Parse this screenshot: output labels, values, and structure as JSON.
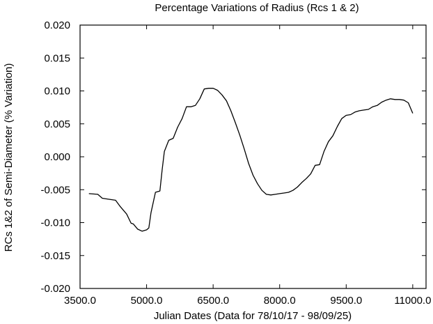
{
  "chart_data": {
    "type": "line",
    "title": "Percentage Variations of Radius (Rcs 1 & 2)",
    "xlabel": "Julian Dates  (Data for 78/10/17 - 98/09/25)",
    "ylabel": "RCs 1&2 of Semi-Diameter (% Variation)",
    "xlim": [
      3500,
      11300
    ],
    "ylim": [
      -0.02,
      0.02
    ],
    "xticks": [
      3500,
      5000,
      6500,
      8000,
      9500,
      11000
    ],
    "xtick_labels": [
      "3500.0",
      "5000.0",
      "6500.0",
      "8000.0",
      "9500.0",
      "11000.0"
    ],
    "yticks": [
      0.02,
      0.015,
      0.01,
      0.005,
      0.0,
      -0.005,
      -0.01,
      -0.015,
      -0.02
    ],
    "ytick_labels": [
      "0.020",
      "0.015",
      "0.010",
      "0.005",
      "0.000",
      "-0.005",
      "-0.010",
      "-0.015",
      "-0.020"
    ],
    "grid": false,
    "legend": "none",
    "series": [
      {
        "x": [
          3700,
          3900,
          4000,
          4100,
          4300,
          4400,
          4550,
          4650,
          4700,
          4800,
          4900,
          5000,
          5050,
          5100,
          5200,
          5300,
          5350,
          5400,
          5500,
          5600,
          5700,
          5800,
          5900,
          6000,
          6100,
          6200,
          6300,
          6400,
          6500,
          6600,
          6700,
          6800,
          6900,
          7000,
          7100,
          7200,
          7300,
          7400,
          7500,
          7600,
          7700,
          7800,
          7900,
          8000,
          8100,
          8200,
          8300,
          8400,
          8500,
          8600,
          8700,
          8800,
          8900,
          9000,
          9100,
          9200,
          9300,
          9400,
          9500,
          9600,
          9700,
          9800,
          9900,
          10000,
          10100,
          10200,
          10300,
          10400,
          10500,
          10600,
          10700,
          10800,
          10900,
          11000
        ],
        "values": [
          -0.0056,
          -0.0057,
          -0.0063,
          -0.0064,
          -0.0066,
          -0.0075,
          -0.0087,
          -0.0101,
          -0.0102,
          -0.011,
          -0.0113,
          -0.0111,
          -0.0108,
          -0.0085,
          -0.0054,
          -0.0052,
          -0.002,
          0.0008,
          0.0025,
          0.0028,
          0.0045,
          0.0058,
          0.0076,
          0.0076,
          0.0078,
          0.0088,
          0.0103,
          0.0104,
          0.0104,
          0.0101,
          0.0094,
          0.0085,
          0.007,
          0.0052,
          0.0033,
          0.0012,
          -0.001,
          -0.0028,
          -0.0041,
          -0.0051,
          -0.0057,
          -0.0058,
          -0.0057,
          -0.0056,
          -0.0055,
          -0.0054,
          -0.0051,
          -0.0046,
          -0.0039,
          -0.0033,
          -0.0026,
          -0.0013,
          -0.0012,
          0.0008,
          0.0023,
          0.0032,
          0.0046,
          0.0058,
          0.0063,
          0.0064,
          0.0068,
          0.007,
          0.0071,
          0.0072,
          0.0076,
          0.0078,
          0.0083,
          0.0086,
          0.0088,
          0.0087,
          0.0087,
          0.0086,
          0.0082,
          0.0066
        ],
        "color": "#000000"
      }
    ]
  }
}
